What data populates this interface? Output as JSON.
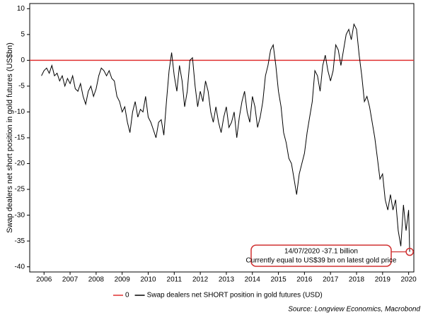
{
  "chart_data": {
    "type": "line",
    "y_label": "Swap dealers net short position in gold futures (US$bn)",
    "source": "Source: Longview Economics, Macrobond",
    "xlim": [
      2005.95,
      2020.7
    ],
    "ylim": [
      -41,
      11
    ],
    "yticks": [
      10,
      5,
      0,
      -5,
      -10,
      -15,
      -20,
      -25,
      -30,
      -35,
      -40
    ],
    "xticks": [
      {
        "value": 2006.5,
        "label": "2006"
      },
      {
        "value": 2007.5,
        "label": "2007"
      },
      {
        "value": 2008.5,
        "label": "2008"
      },
      {
        "value": 2009.5,
        "label": "2009"
      },
      {
        "value": 2010.5,
        "label": "2010"
      },
      {
        "value": 2011.5,
        "label": "2011"
      },
      {
        "value": 2012.5,
        "label": "2012"
      },
      {
        "value": 2013.5,
        "label": "2013"
      },
      {
        "value": 2014.5,
        "label": "2014"
      },
      {
        "value": 2015.5,
        "label": "2015"
      },
      {
        "value": 2016.5,
        "label": "2016"
      },
      {
        "value": 2017.5,
        "label": "2017"
      },
      {
        "value": 2018.5,
        "label": "2018"
      },
      {
        "value": 2019.5,
        "label": "2019"
      },
      {
        "value": 2020.5,
        "label": "2020"
      }
    ],
    "series": [
      {
        "name": "0",
        "color": "#e03030",
        "x": [
          2005.95,
          2020.7
        ],
        "values": [
          0,
          0
        ]
      },
      {
        "name": "Swap dealers net SHORT position in gold futures (USD)",
        "color": "#000000",
        "x": [
          2006.4,
          2006.5,
          2006.6,
          2006.7,
          2006.8,
          2006.9,
          2007.0,
          2007.1,
          2007.2,
          2007.3,
          2007.4,
          2007.5,
          2007.6,
          2007.7,
          2007.8,
          2007.9,
          2008.0,
          2008.1,
          2008.2,
          2008.3,
          2008.4,
          2008.5,
          2008.6,
          2008.7,
          2008.8,
          2008.9,
          2009.0,
          2009.1,
          2009.2,
          2009.3,
          2009.4,
          2009.5,
          2009.6,
          2009.7,
          2009.8,
          2009.9,
          2010.0,
          2010.1,
          2010.2,
          2010.3,
          2010.4,
          2010.5,
          2010.6,
          2010.7,
          2010.8,
          2010.9,
          2011.0,
          2011.1,
          2011.2,
          2011.3,
          2011.4,
          2011.5,
          2011.6,
          2011.7,
          2011.8,
          2011.9,
          2012.0,
          2012.1,
          2012.2,
          2012.3,
          2012.4,
          2012.5,
          2012.6,
          2012.7,
          2012.8,
          2012.9,
          2013.0,
          2013.1,
          2013.2,
          2013.3,
          2013.4,
          2013.5,
          2013.6,
          2013.7,
          2013.8,
          2013.9,
          2014.0,
          2014.1,
          2014.2,
          2014.3,
          2014.4,
          2014.5,
          2014.6,
          2014.7,
          2014.8,
          2014.9,
          2015.0,
          2015.1,
          2015.2,
          2015.3,
          2015.4,
          2015.5,
          2015.6,
          2015.7,
          2015.8,
          2015.9,
          2016.0,
          2016.1,
          2016.2,
          2016.3,
          2016.4,
          2016.5,
          2016.6,
          2016.7,
          2016.8,
          2016.9,
          2017.0,
          2017.1,
          2017.2,
          2017.3,
          2017.4,
          2017.5,
          2017.6,
          2017.7,
          2017.8,
          2017.9,
          2018.0,
          2018.1,
          2018.2,
          2018.3,
          2018.4,
          2018.5,
          2018.6,
          2018.7,
          2018.8,
          2018.9,
          2019.0,
          2019.1,
          2019.2,
          2019.3,
          2019.4,
          2019.5,
          2019.6,
          2019.7,
          2019.8,
          2019.9,
          2020.0,
          2020.1,
          2020.2,
          2020.3,
          2020.4,
          2020.5,
          2020.54
        ],
        "values": [
          -3,
          -2,
          -1.5,
          -2.5,
          -1,
          -3,
          -2.5,
          -4,
          -3,
          -5,
          -3.5,
          -4.5,
          -3,
          -5.5,
          -6,
          -4.5,
          -7,
          -8.5,
          -6,
          -5,
          -7,
          -5.5,
          -3,
          -1.5,
          -2,
          -3,
          -2,
          -3.5,
          -4,
          -7,
          -8,
          -10,
          -9,
          -12,
          -14,
          -10,
          -8,
          -11,
          -9.5,
          -10,
          -7,
          -11,
          -12,
          -13.5,
          -15,
          -12,
          -11.5,
          -14.5,
          -8,
          -2,
          1.5,
          -3,
          -6,
          -1,
          -4,
          -9,
          -6,
          0,
          0.5,
          -5,
          -9,
          -6,
          -8,
          -4,
          -6,
          -10,
          -12,
          -9,
          -12,
          -14,
          -11,
          -9,
          -13,
          -12,
          -10,
          -15,
          -11,
          -8,
          -6,
          -10,
          -12,
          -7,
          -9,
          -13,
          -11,
          -8,
          -3,
          -1,
          2,
          3,
          -1,
          -6,
          -9,
          -14,
          -16,
          -19,
          -20,
          -23,
          -26,
          -22,
          -20,
          -18,
          -14,
          -11,
          -8,
          -2,
          -3,
          -6,
          -1,
          1,
          -2,
          -4,
          -2,
          3,
          2,
          -1,
          2,
          5,
          6,
          4,
          7,
          6,
          1,
          -3,
          -8,
          -7,
          -9,
          -12,
          -15,
          -19,
          -23,
          -22,
          -27,
          -29,
          -26,
          -29,
          -27,
          -33,
          -36,
          -28,
          -33,
          -29,
          -37.1
        ]
      }
    ],
    "annotations": [
      "14/07/2020 -37.1 billion",
      "Currently equal to US$39 bn on latest gold price"
    ]
  }
}
